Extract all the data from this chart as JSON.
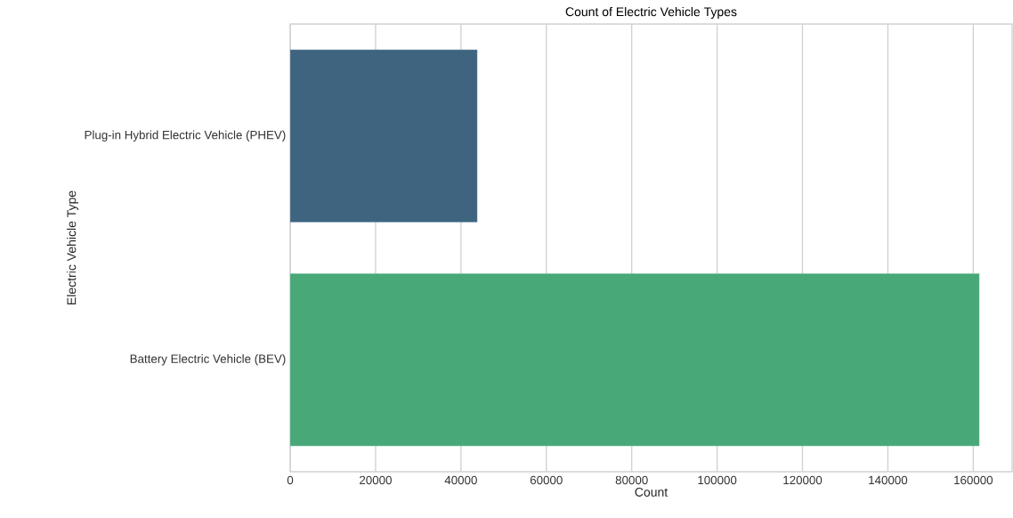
{
  "chart_data": {
    "type": "bar",
    "orientation": "horizontal",
    "title": "Count of Electric Vehicle Types",
    "xlabel": "Count",
    "ylabel": "Electric Vehicle Type",
    "categories": [
      "Plug-in Hybrid Electric Vehicle (PHEV)",
      "Battery Electric Vehicle (BEV)"
    ],
    "values": [
      43800,
      161400
    ],
    "colors": [
      "#3e6480",
      "#48a878"
    ],
    "xlim": [
      0,
      169100
    ],
    "xticks": [
      0,
      20000,
      40000,
      60000,
      80000,
      100000,
      120000,
      140000,
      160000
    ],
    "grid": "x"
  }
}
